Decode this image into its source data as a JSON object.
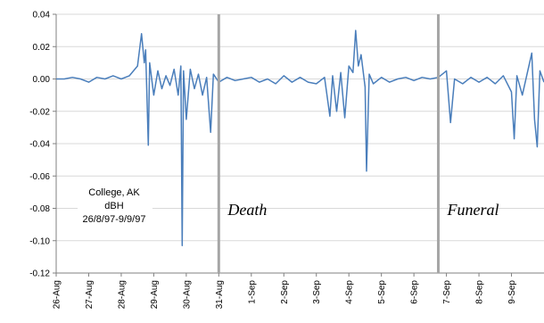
{
  "chart_data": {
    "type": "line",
    "title": "",
    "xlabel": "",
    "ylabel": "",
    "ylim": [
      -0.12,
      0.04
    ],
    "yticks": [
      0.04,
      0.02,
      0.0,
      -0.02,
      -0.04,
      -0.06,
      -0.08,
      -0.1,
      -0.12
    ],
    "ytick_labels": [
      "0.04",
      "0.02",
      "0.00",
      "-0.02",
      "-0.04",
      "-0.06",
      "-0.08",
      "-0.10",
      "-0.12"
    ],
    "x_dates": [
      "26-Aug",
      "27-Aug",
      "28-Aug",
      "29-Aug",
      "30-Aug",
      "31-Aug",
      "1-Sep",
      "2-Sep",
      "3-Sep",
      "4-Sep",
      "5-Sep",
      "6-Sep",
      "7-Sep",
      "8-Sep",
      "9-Sep"
    ],
    "xlim_days": [
      "1997-08-26",
      "1997-09-10"
    ],
    "grid": "horizontal",
    "legend": "none",
    "line_color": "#4a7ebb",
    "annotation_box": {
      "lines": [
        "College, AK",
        "dBH",
        "26/8/97-9/9/97"
      ]
    },
    "events": [
      {
        "label": "Death",
        "date": "1997-08-31"
      },
      {
        "label": "Funeral",
        "date": "1997-09-06T18:00"
      }
    ],
    "series": [
      {
        "points": [
          [
            "1997-08-26T00:00",
            0.0
          ],
          [
            "1997-08-26T06:00",
            0.0
          ],
          [
            "1997-08-26T12:00",
            0.001
          ],
          [
            "1997-08-26T18:00",
            0.0
          ],
          [
            "1997-08-27T00:00",
            -0.002
          ],
          [
            "1997-08-27T06:00",
            0.001
          ],
          [
            "1997-08-27T12:00",
            0.0
          ],
          [
            "1997-08-27T18:00",
            0.002
          ],
          [
            "1997-08-28T00:00",
            0.0
          ],
          [
            "1997-08-28T06:00",
            0.002
          ],
          [
            "1997-08-28T12:00",
            0.008
          ],
          [
            "1997-08-28T15:00",
            0.028
          ],
          [
            "1997-08-28T17:00",
            0.01
          ],
          [
            "1997-08-28T18:00",
            0.018
          ],
          [
            "1997-08-28T20:00",
            -0.041
          ],
          [
            "1997-08-28T21:00",
            0.01
          ],
          [
            "1997-08-29T00:00",
            -0.01
          ],
          [
            "1997-08-29T03:00",
            0.005
          ],
          [
            "1997-08-29T06:00",
            -0.006
          ],
          [
            "1997-08-29T09:00",
            0.002
          ],
          [
            "1997-08-29T12:00",
            -0.004
          ],
          [
            "1997-08-29T15:00",
            0.006
          ],
          [
            "1997-08-29T18:00",
            -0.01
          ],
          [
            "1997-08-29T20:00",
            0.008
          ],
          [
            "1997-08-29T21:00",
            -0.103
          ],
          [
            "1997-08-29T22:00",
            0.005
          ],
          [
            "1997-08-30T00:00",
            -0.025
          ],
          [
            "1997-08-30T03:00",
            0.006
          ],
          [
            "1997-08-30T06:00",
            -0.006
          ],
          [
            "1997-08-30T09:00",
            0.003
          ],
          [
            "1997-08-30T12:00",
            -0.01
          ],
          [
            "1997-08-30T15:00",
            0.001
          ],
          [
            "1997-08-30T18:00",
            -0.033
          ],
          [
            "1997-08-30T20:00",
            0.003
          ],
          [
            "1997-08-31T00:00",
            -0.002
          ],
          [
            "1997-08-31T06:00",
            0.001
          ],
          [
            "1997-08-31T12:00",
            -0.001
          ],
          [
            "1997-08-31T18:00",
            0.0
          ],
          [
            "1997-09-01T00:00",
            0.001
          ],
          [
            "1997-09-01T06:00",
            -0.002
          ],
          [
            "1997-09-01T12:00",
            0.0
          ],
          [
            "1997-09-01T18:00",
            -0.003
          ],
          [
            "1997-09-02T00:00",
            0.002
          ],
          [
            "1997-09-02T06:00",
            -0.002
          ],
          [
            "1997-09-02T12:00",
            0.001
          ],
          [
            "1997-09-02T18:00",
            -0.002
          ],
          [
            "1997-09-03T00:00",
            -0.003
          ],
          [
            "1997-09-03T06:00",
            0.001
          ],
          [
            "1997-09-03T10:00",
            -0.023
          ],
          [
            "1997-09-03T12:00",
            0.002
          ],
          [
            "1997-09-03T15:00",
            -0.02
          ],
          [
            "1997-09-03T18:00",
            0.004
          ],
          [
            "1997-09-03T21:00",
            -0.024
          ],
          [
            "1997-09-04T00:00",
            0.008
          ],
          [
            "1997-09-04T03:00",
            0.004
          ],
          [
            "1997-09-04T05:00",
            0.03
          ],
          [
            "1997-09-04T07:00",
            0.008
          ],
          [
            "1997-09-04T09:00",
            0.015
          ],
          [
            "1997-09-04T12:00",
            -0.005
          ],
          [
            "1997-09-04T13:00",
            -0.057
          ],
          [
            "1997-09-04T15:00",
            0.003
          ],
          [
            "1997-09-04T18:00",
            -0.003
          ],
          [
            "1997-09-05T00:00",
            0.001
          ],
          [
            "1997-09-05T06:00",
            -0.002
          ],
          [
            "1997-09-05T12:00",
            0.0
          ],
          [
            "1997-09-05T18:00",
            0.001
          ],
          [
            "1997-09-06T00:00",
            -0.001
          ],
          [
            "1997-09-06T06:00",
            0.001
          ],
          [
            "1997-09-06T12:00",
            0.0
          ],
          [
            "1997-09-06T18:00",
            0.001
          ],
          [
            "1997-09-07T00:00",
            0.005
          ],
          [
            "1997-09-07T03:00",
            -0.027
          ],
          [
            "1997-09-07T06:00",
            0.0
          ],
          [
            "1997-09-07T12:00",
            -0.003
          ],
          [
            "1997-09-07T18:00",
            0.001
          ],
          [
            "1997-09-08T00:00",
            -0.002
          ],
          [
            "1997-09-08T06:00",
            0.001
          ],
          [
            "1997-09-08T12:00",
            -0.003
          ],
          [
            "1997-09-08T18:00",
            0.002
          ],
          [
            "1997-09-09T00:00",
            -0.008
          ],
          [
            "1997-09-09T02:00",
            -0.037
          ],
          [
            "1997-09-09T04:00",
            0.002
          ],
          [
            "1997-09-09T08:00",
            -0.01
          ],
          [
            "1997-09-09T12:00",
            0.005
          ],
          [
            "1997-09-09T15:00",
            0.016
          ],
          [
            "1997-09-09T17:00",
            -0.025
          ],
          [
            "1997-09-09T19:00",
            -0.042
          ],
          [
            "1997-09-09T21:00",
            0.005
          ],
          [
            "1997-09-10T00:00",
            -0.002
          ]
        ]
      }
    ]
  }
}
